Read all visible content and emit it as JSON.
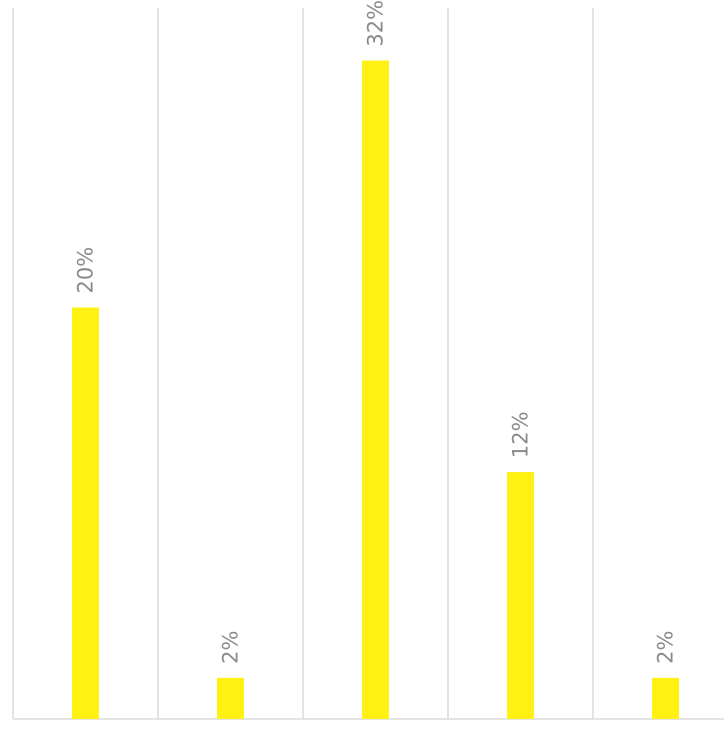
{
  "chart_data": {
    "type": "bar",
    "orientation": "vertical",
    "categories": [
      "",
      "",
      "",
      "",
      ""
    ],
    "values": [
      20,
      2,
      32,
      12,
      2
    ],
    "data_labels": [
      "20%",
      "2%",
      "32%",
      "12%",
      "2%"
    ],
    "unit": "%",
    "title": "",
    "xlabel": "",
    "ylabel": "",
    "ylim": [
      0,
      33
    ],
    "grid": "vertical",
    "legend": "none",
    "data_label_rotation": "vertical",
    "bar_color": "#fff212",
    "grid_color": "#d4d4d4",
    "label_color": "#8a8a8a"
  }
}
